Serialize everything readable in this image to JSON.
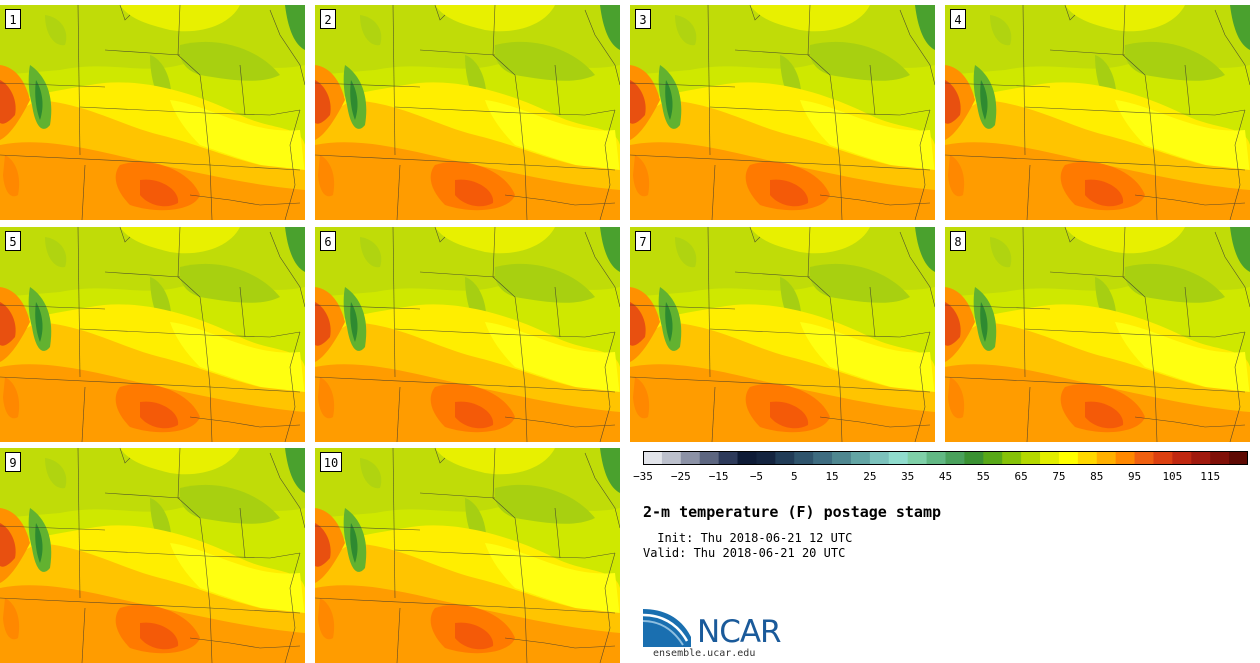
{
  "figure": {
    "title": "2-m temperature (F) postage stamp",
    "init": " Init: Thu 2018-06-21 12 UTC",
    "valid": "Valid: Thu 2018-06-21 20 UTC",
    "variable": "2-m temperature",
    "units": "F"
  },
  "members": [
    {
      "label": "1"
    },
    {
      "label": "2"
    },
    {
      "label": "3"
    },
    {
      "label": "4"
    },
    {
      "label": "5"
    },
    {
      "label": "6"
    },
    {
      "label": "7"
    },
    {
      "label": "8"
    },
    {
      "label": "9"
    },
    {
      "label": "10"
    }
  ],
  "colorbar": {
    "min": -35,
    "max": 125,
    "step": 5,
    "tick_labels": [
      "−35",
      "−25",
      "−15",
      "−5",
      "5",
      "15",
      "25",
      "35",
      "45",
      "55",
      "65",
      "75",
      "85",
      "95",
      "105",
      "115"
    ],
    "colors": [
      "#e2e4ea",
      "#bcc0cc",
      "#8c92a6",
      "#5d6680",
      "#2d3a5a",
      "#0e1b36",
      "#14243f",
      "#213c57",
      "#2f546c",
      "#3e6c80",
      "#4f8790",
      "#63a5a4",
      "#7cc2bc",
      "#90dccd",
      "#7fd0a8",
      "#62b884",
      "#4aa15c",
      "#3a9132",
      "#58a818",
      "#86c208",
      "#b4d800",
      "#e2ee00",
      "#ffff00",
      "#ffd800",
      "#ffb000",
      "#ff8800",
      "#f06010",
      "#dc4010",
      "#c02810",
      "#a01a0e",
      "#801008",
      "#5e0a04"
    ]
  },
  "logo": {
    "name": "NCAR",
    "url": "ensemble.ucar.edu"
  }
}
